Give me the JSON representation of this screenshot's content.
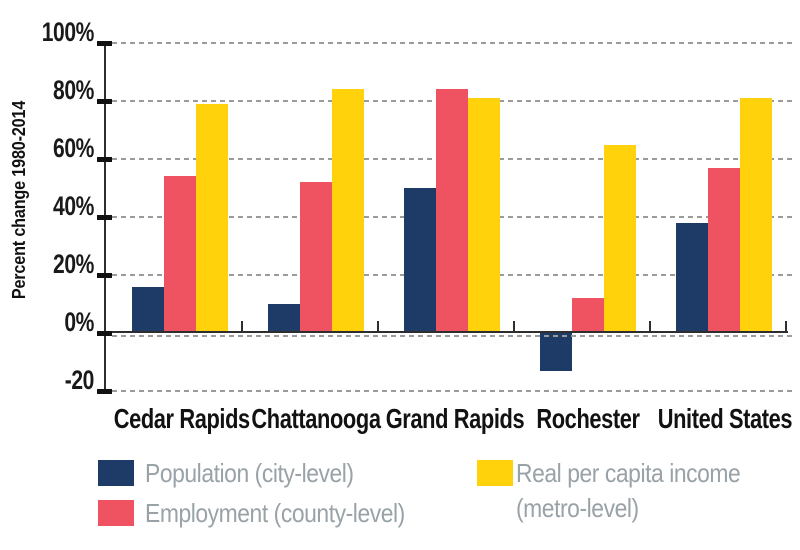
{
  "chart_data": {
    "type": "bar",
    "title": "",
    "ylabel": "Percent change 1980-2014",
    "categories": [
      "Cedar Rapids",
      "Chattanooga",
      "Grand Rapids",
      "Rochester",
      "United States"
    ],
    "series": [
      {
        "name": "Population (city-level)",
        "color": "#1e3a67",
        "values": [
          16,
          10,
          50,
          -13,
          38
        ]
      },
      {
        "name": "Employment (county-level)",
        "color": "#ef5361",
        "values": [
          54,
          52,
          84,
          12,
          57
        ]
      },
      {
        "name": "Real per capita income (metro-level)",
        "color": "#ffd20b",
        "values": [
          79,
          84,
          81,
          65,
          81
        ]
      }
    ],
    "ylim": [
      -20,
      100
    ],
    "yticks": [
      {
        "value": 100,
        "label": "100%"
      },
      {
        "value": 80,
        "label": "80%"
      },
      {
        "value": 60,
        "label": "60%"
      },
      {
        "value": 40,
        "label": "40%"
      },
      {
        "value": 20,
        "label": "20%"
      },
      {
        "value": 0,
        "label": "0%"
      },
      {
        "value": -20,
        "label": "-20"
      }
    ],
    "grid": "horizontal-dashed",
    "legend_position": "bottom"
  },
  "legend": {
    "items": [
      {
        "line1": "Population (city-level)",
        "line2": "",
        "color": "#1e3a67"
      },
      {
        "line1": "Employment (county-level)",
        "line2": "",
        "color": "#ef5361"
      },
      {
        "line1": "Real per capita income",
        "line2": "(metro-level)",
        "color": "#ffd20b"
      }
    ]
  },
  "colors": {
    "background": "#ffffff",
    "axis": "#2e2e2e",
    "grid": "#9b9b9b",
    "tick": "#111111",
    "label_text": "#121212",
    "legend_text": "#98a2a7"
  }
}
